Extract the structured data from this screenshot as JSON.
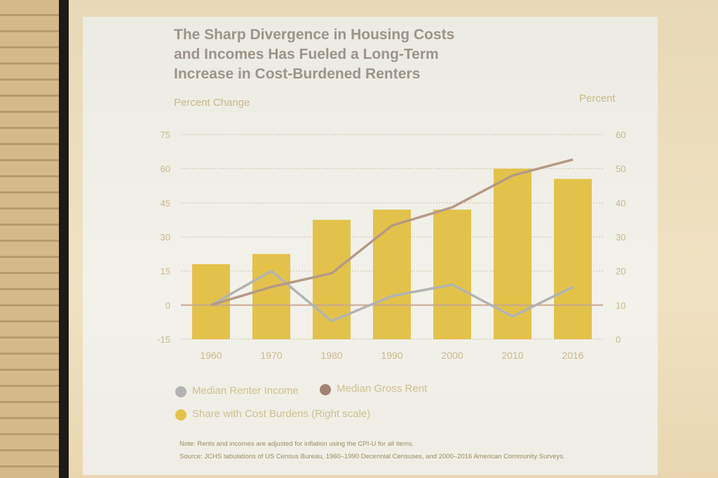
{
  "chart_data": {
    "type": "bar+line",
    "title": "The Sharp Divergence in Housing Costs and Incomes Has Fueled a Long-Term Increase in Cost-Burdened Renters",
    "title_lines": [
      "The Sharp Divergence in Housing Costs",
      "and Incomes Has Fueled a Long-Term",
      "Increase in Cost-Burdened Renters"
    ],
    "ylabel_left": "Percent Change",
    "ylabel_right": "Percent",
    "categories": [
      "1960",
      "1970",
      "1980",
      "1990",
      "2000",
      "2010",
      "2016"
    ],
    "left_ticks": [
      "75",
      "60",
      "45",
      "30",
      "15",
      "0",
      "-15"
    ],
    "right_ticks": [
      "60",
      "50",
      "40",
      "30",
      "20",
      "10",
      "0"
    ],
    "ylim_left": [
      -15,
      75
    ],
    "ylim_right": [
      0,
      60
    ],
    "bars": {
      "name": "Share with Cost Burdens (Right scale)",
      "axis": "right",
      "values": [
        22,
        25,
        35,
        38,
        38,
        50,
        47
      ]
    },
    "series": [
      {
        "name": "Median Renter Income",
        "axis": "left",
        "values": [
          0,
          15,
          -7,
          4,
          9,
          -5,
          8
        ]
      },
      {
        "name": "Median Gross Rent",
        "axis": "left",
        "values": [
          0,
          8,
          14,
          35,
          43,
          57,
          64
        ]
      }
    ],
    "colors": {
      "bars": "#e2c24a",
      "income": "#b3b3b3",
      "rent": "#b59a86",
      "zero": "#c9a98f",
      "grid": "#c7b68c"
    }
  },
  "legend": {
    "income": "Median Renter Income",
    "rent": "Median Gross Rent",
    "burden": "Share with Cost Burdens (Right scale)"
  },
  "note": "Note: Rents and incomes are adjusted for inflation using the CPI-U for all items.",
  "source": "Source: JCHS tabulations of US Census Bureau, 1960–1990 Decennial Censuses, and 2000–2016 American Community Surveys."
}
